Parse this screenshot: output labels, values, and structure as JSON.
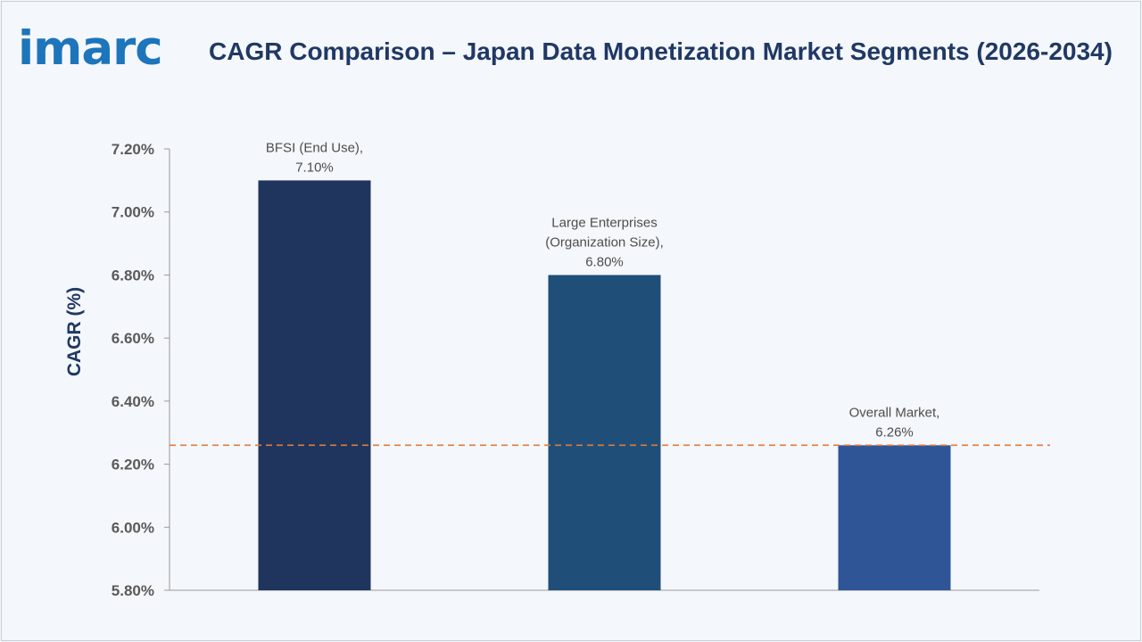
{
  "logo": {
    "text": "imarc"
  },
  "chart_data": {
    "type": "bar",
    "title": "CAGR Comparison – Japan Data Monetization Market Segments (2026-2034)",
    "xlabel": "",
    "ylabel": "CAGR (%)",
    "categories": [
      "BFSI (End Use)",
      "Large Enterprises (Organization Size)",
      "Overall Market"
    ],
    "values": [
      7.1,
      6.8,
      6.26
    ],
    "data_labels": [
      [
        "BFSI (End Use),",
        "7.10%"
      ],
      [
        "Large Enterprises",
        "(Organization Size),",
        "6.80%"
      ],
      [
        "Overall Market,",
        "6.26%"
      ]
    ],
    "bar_colors": [
      "#1f355e",
      "#1f4e79",
      "#2f5597"
    ],
    "ylim": [
      5.8,
      7.2
    ],
    "yticks": [
      5.8,
      6.0,
      6.2,
      6.4,
      6.6,
      6.8,
      7.0,
      7.2
    ],
    "ytick_labels": [
      "5.80%",
      "6.00%",
      "6.20%",
      "6.40%",
      "6.60%",
      "6.80%",
      "7.00%",
      "7.20%"
    ],
    "reference_line": {
      "value": 6.26,
      "style": "dashed",
      "color": "#e07b39"
    },
    "grid": false,
    "legend": "none"
  }
}
